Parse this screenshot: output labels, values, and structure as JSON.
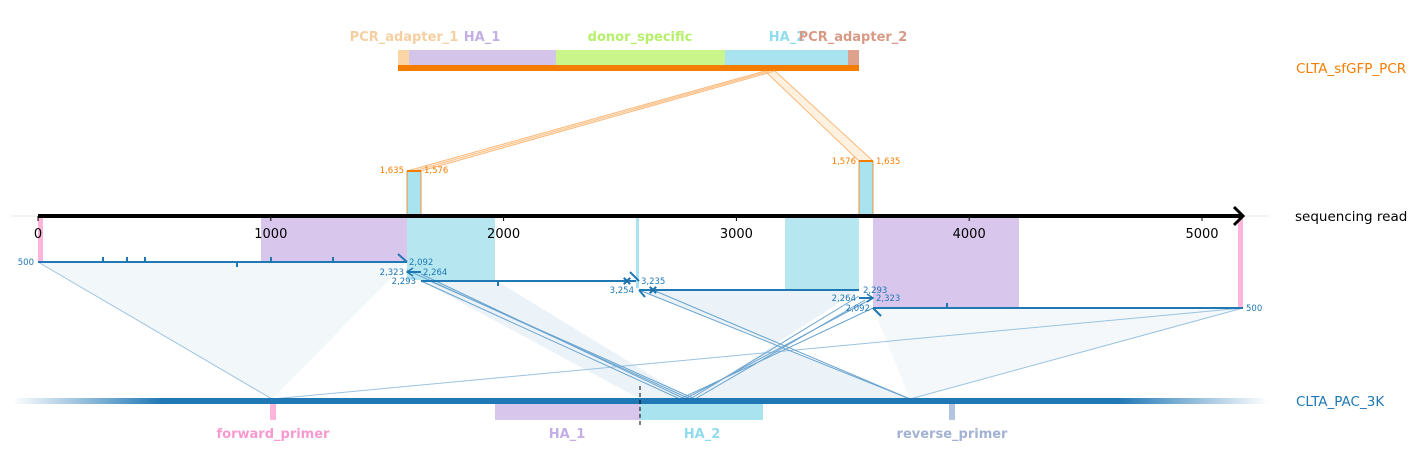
{
  "labels": {
    "pcr_name": "CLTA_sfGFP_PCR",
    "read_name": "sequencing read",
    "reference_name": "CLTA_PAC_3K"
  },
  "pcr_features": [
    {
      "name": "PCR_adapter_1",
      "color": "#fbd6a4",
      "text_color": "#f6cfa0"
    },
    {
      "name": "HA_1",
      "color": "#d5c4ea",
      "text_color": "#c4aee6"
    },
    {
      "name": "donor_specific",
      "color": "#c9f58a",
      "text_color": "#b5f06a"
    },
    {
      "name": "HA_2",
      "color": "#a9e3ef",
      "text_color": "#8fdcee"
    },
    {
      "name": "PCR_adapter_2",
      "color": "#dea18c",
      "text_color": "#d99a85"
    }
  ],
  "reference_features": [
    {
      "name": "forward_primer",
      "color": "#ffb4dc",
      "text_color": "#f89ad0"
    },
    {
      "name": "HA_1",
      "color": "#d8c6ec",
      "text_color": "#c4aee6"
    },
    {
      "name": "HA_2",
      "color": "#a9e3ef",
      "text_color": "#8fdcee"
    },
    {
      "name": "reverse_primer",
      "color": "#b4c3df",
      "text_color": "#a3b2d4"
    }
  ],
  "axis": {
    "ticks": [
      0,
      1000,
      2000,
      3000,
      4000,
      5000
    ],
    "tick_labels": [
      "0",
      "1000",
      "2000",
      "3000",
      "4000",
      "5000"
    ],
    "max": 5200
  },
  "alignment_numbers": {
    "pcr_left_a": "1,635",
    "pcr_left_b": "1,576",
    "pcr_right_a": "1,576",
    "pcr_right_b": "1,635",
    "ref_start": "500",
    "ref_end": "500",
    "a1": "2,092",
    "a2": "2,323",
    "a3": "2,264",
    "a4": "2,293",
    "a5": "3,235",
    "a6": "3,254",
    "a7": "2,293",
    "a8": "2,264",
    "a9": "2,323",
    "a10": "2,092"
  },
  "colors": {
    "pcr_accent": "#f47c00",
    "reference_accent": "#1f77b4",
    "read_axis": "#000000"
  }
}
